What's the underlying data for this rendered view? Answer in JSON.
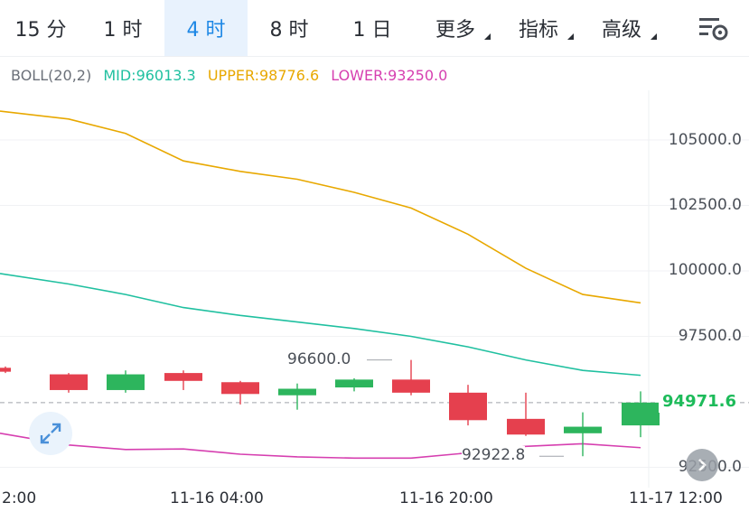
{
  "tabs": [
    {
      "label": "15 分",
      "active": false,
      "dropdown": false
    },
    {
      "label": "1 时",
      "active": false,
      "dropdown": false
    },
    {
      "label": "4 时",
      "active": true,
      "dropdown": false
    },
    {
      "label": "8 时",
      "active": false,
      "dropdown": false
    },
    {
      "label": "1 日",
      "active": false,
      "dropdown": false
    },
    {
      "label": "更多",
      "active": false,
      "dropdown": true
    },
    {
      "label": "指标",
      "active": false,
      "dropdown": true
    },
    {
      "label": "高级",
      "active": false,
      "dropdown": true
    }
  ],
  "settings_icon": "chart-settings-icon",
  "indicator": {
    "name": "BOLL(20,2)",
    "mid": "MID:96013.3",
    "upper": "UPPER:98776.6",
    "lower": "LOWER:93250.0"
  },
  "colors": {
    "up": "#2db55d",
    "down": "#e5404e",
    "mid": "#20c0a0",
    "upper": "#e8a800",
    "lower": "#d63fb0",
    "accent": "#1e88e5"
  },
  "price_axis": [
    "105000.0",
    "102500.0",
    "100000.0",
    "97500.0",
    "92500.0"
  ],
  "current_price": "94971.6",
  "high_marker": "96600.0",
  "low_marker": "92922.8",
  "time_axis": [
    "2:00",
    "11-16 04:00",
    "11-16 20:00",
    "11-17 12:00"
  ],
  "chart_data": {
    "type": "candlestick",
    "ylim": [
      91900,
      107500
    ],
    "candles": [
      {
        "open": 96300,
        "close": 96150,
        "high": 96350,
        "low": 96100
      },
      {
        "open": 96050,
        "close": 95450,
        "high": 96100,
        "low": 95350
      },
      {
        "open": 95450,
        "close": 96050,
        "high": 96200,
        "low": 95350
      },
      {
        "open": 96100,
        "close": 95800,
        "high": 96200,
        "low": 95450
      },
      {
        "open": 95750,
        "close": 95300,
        "high": 95800,
        "low": 94900
      },
      {
        "open": 95250,
        "close": 95500,
        "high": 95700,
        "low": 94700
      },
      {
        "open": 95550,
        "close": 95850,
        "high": 95900,
        "low": 95400
      },
      {
        "open": 95850,
        "close": 95350,
        "high": 96600,
        "low": 95250
      },
      {
        "open": 95350,
        "close": 94300,
        "high": 95650,
        "low": 94100
      },
      {
        "open": 94350,
        "close": 93750,
        "high": 95350,
        "low": 93700
      },
      {
        "open": 93800,
        "close": 94050,
        "high": 94600,
        "low": 92922.8
      },
      {
        "open": 94100,
        "close": 94971.6,
        "high": 95400,
        "low": 93650
      }
    ],
    "upper": [
      106100,
      105800,
      105250,
      104200,
      103800,
      103500,
      103000,
      102400,
      101400,
      100100,
      99100,
      98776.6
    ],
    "mid": [
      99900,
      99500,
      99100,
      98600,
      98300,
      98050,
      97800,
      97500,
      97100,
      96600,
      96200,
      96013.3
    ],
    "lower": [
      93800,
      93350,
      93180,
      93200,
      93000,
      92900,
      92850,
      92850,
      93050,
      93300,
      93400,
      93250
    ]
  }
}
